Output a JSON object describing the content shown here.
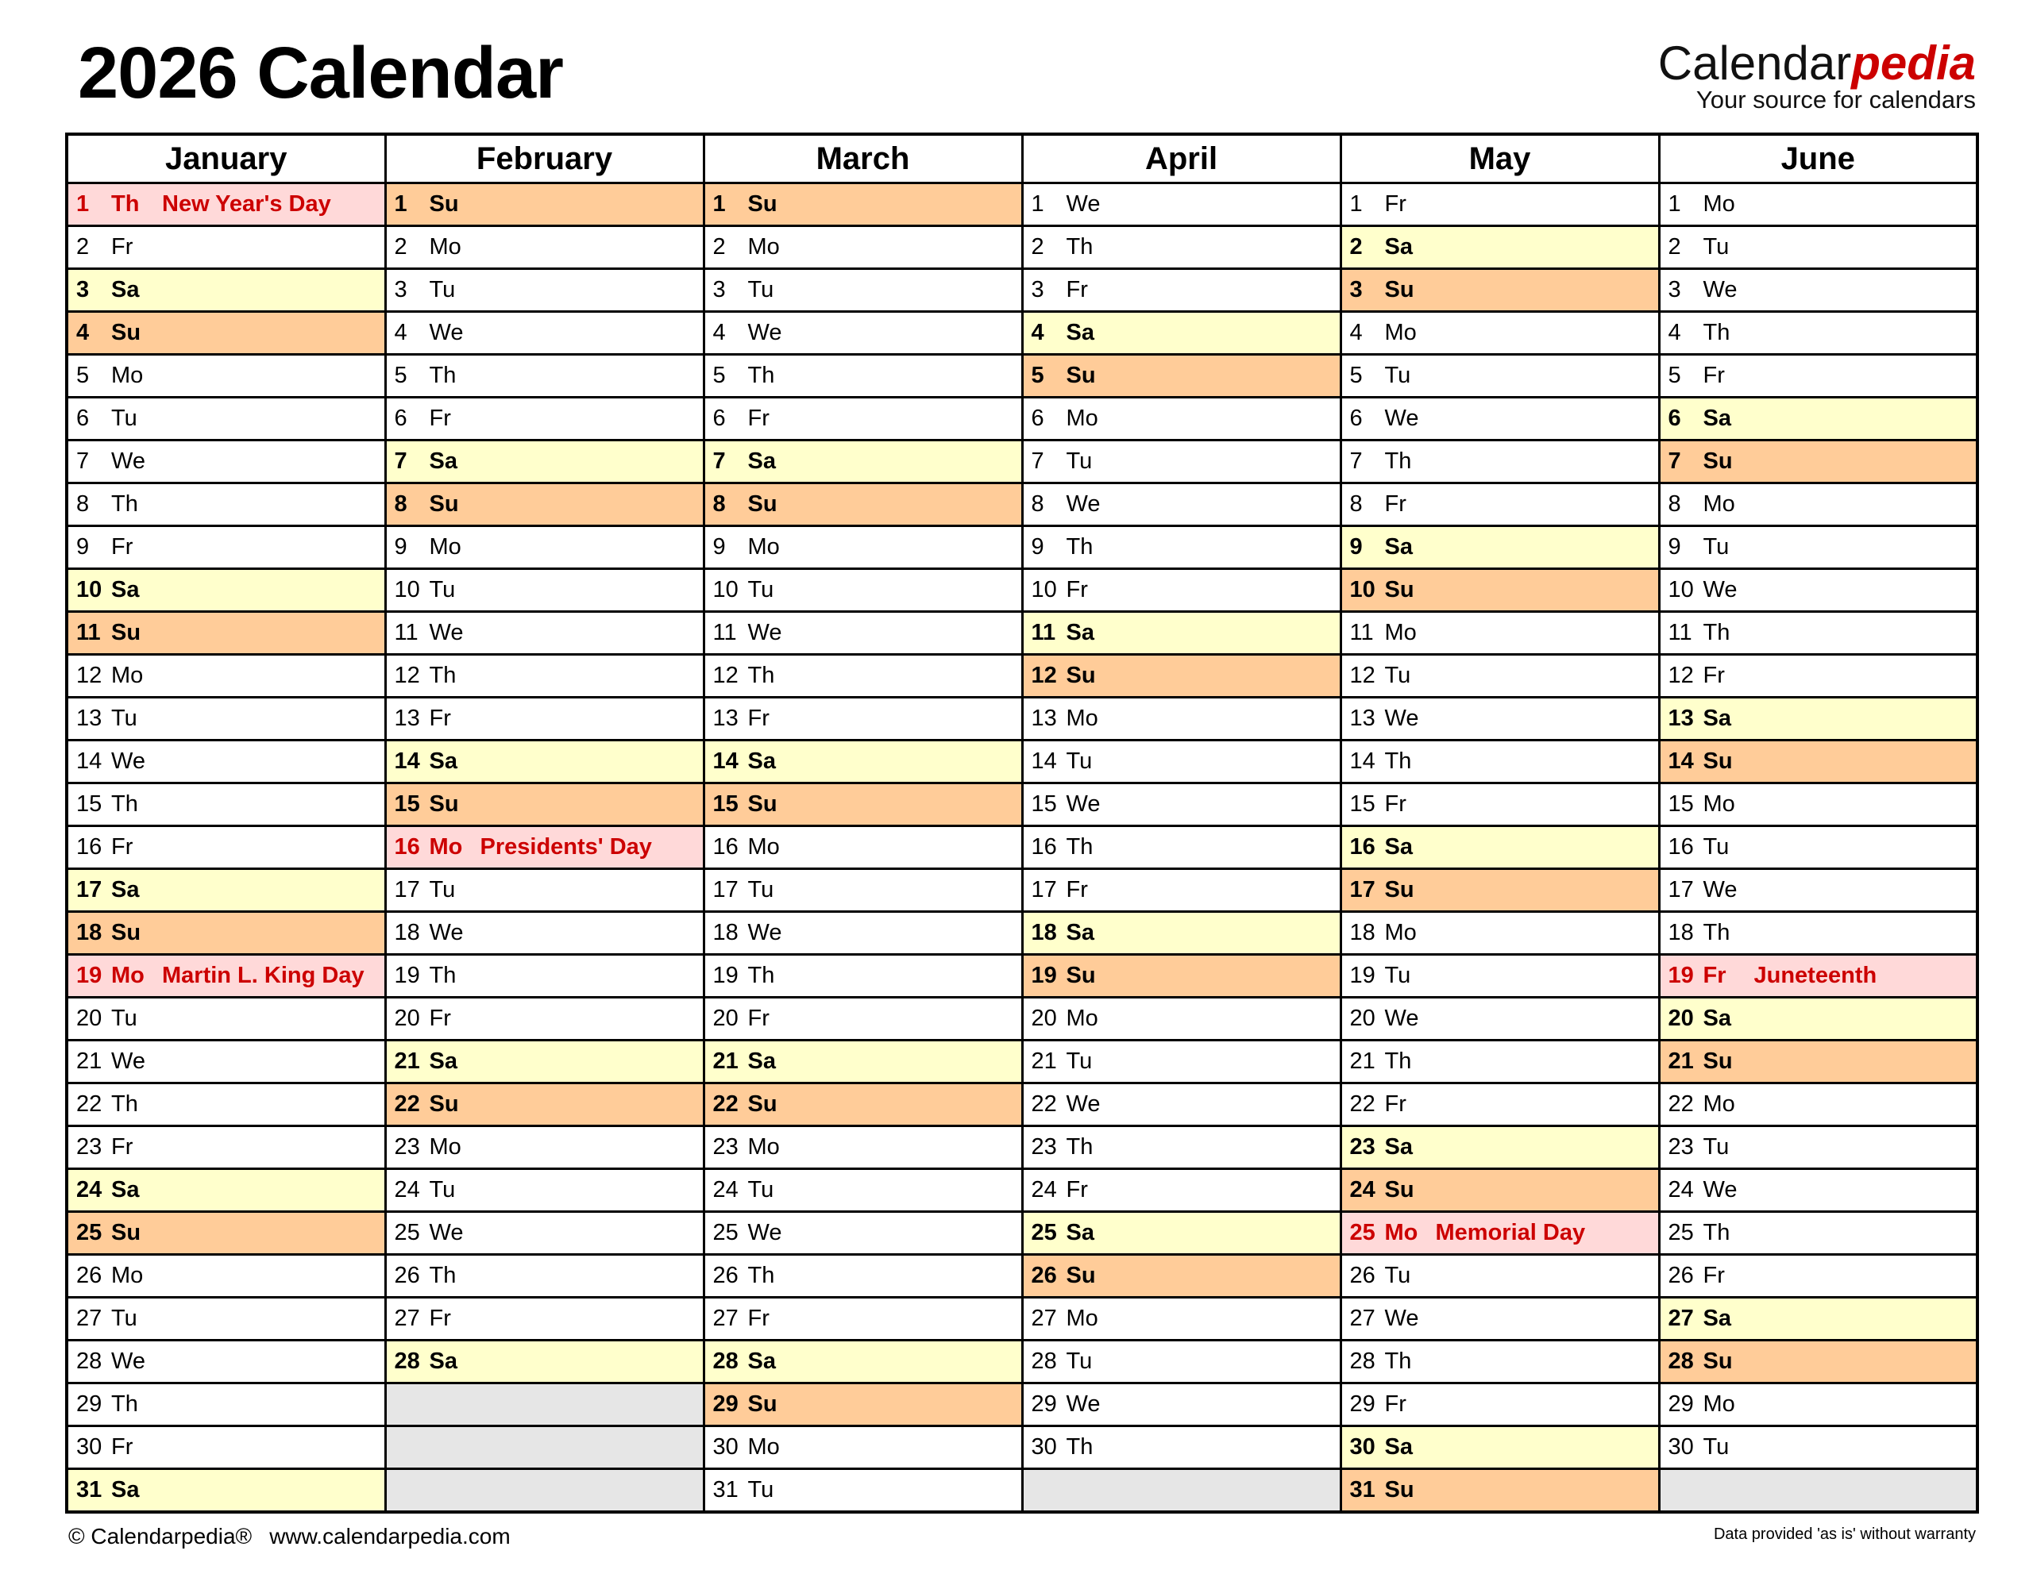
{
  "title": "2026 Calendar",
  "logo": {
    "main": "Calendar",
    "accent": "pedia",
    "tagline": "Your source for calendars"
  },
  "colors": {
    "saturday": "#ffffcc",
    "sunday": "#ffcc99",
    "holiday_bg": "#ffd9d9",
    "holiday_text": "#cc0000",
    "empty": "#e6e6e6"
  },
  "months": [
    {
      "name": "January",
      "days": [
        [
          "1",
          "Th",
          "New Year's Day"
        ],
        [
          "2",
          "Fr"
        ],
        [
          "3",
          "Sa"
        ],
        [
          "4",
          "Su"
        ],
        [
          "5",
          "Mo"
        ],
        [
          "6",
          "Tu"
        ],
        [
          "7",
          "We"
        ],
        [
          "8",
          "Th"
        ],
        [
          "9",
          "Fr"
        ],
        [
          "10",
          "Sa"
        ],
        [
          "11",
          "Su"
        ],
        [
          "12",
          "Mo"
        ],
        [
          "13",
          "Tu"
        ],
        [
          "14",
          "We"
        ],
        [
          "15",
          "Th"
        ],
        [
          "16",
          "Fr"
        ],
        [
          "17",
          "Sa"
        ],
        [
          "18",
          "Su"
        ],
        [
          "19",
          "Mo",
          "Martin L. King Day"
        ],
        [
          "20",
          "Tu"
        ],
        [
          "21",
          "We"
        ],
        [
          "22",
          "Th"
        ],
        [
          "23",
          "Fr"
        ],
        [
          "24",
          "Sa"
        ],
        [
          "25",
          "Su"
        ],
        [
          "26",
          "Mo"
        ],
        [
          "27",
          "Tu"
        ],
        [
          "28",
          "We"
        ],
        [
          "29",
          "Th"
        ],
        [
          "30",
          "Fr"
        ],
        [
          "31",
          "Sa"
        ]
      ]
    },
    {
      "name": "February",
      "days": [
        [
          "1",
          "Su"
        ],
        [
          "2",
          "Mo"
        ],
        [
          "3",
          "Tu"
        ],
        [
          "4",
          "We"
        ],
        [
          "5",
          "Th"
        ],
        [
          "6",
          "Fr"
        ],
        [
          "7",
          "Sa"
        ],
        [
          "8",
          "Su"
        ],
        [
          "9",
          "Mo"
        ],
        [
          "10",
          "Tu"
        ],
        [
          "11",
          "We"
        ],
        [
          "12",
          "Th"
        ],
        [
          "13",
          "Fr"
        ],
        [
          "14",
          "Sa"
        ],
        [
          "15",
          "Su"
        ],
        [
          "16",
          "Mo",
          "Presidents' Day"
        ],
        [
          "17",
          "Tu"
        ],
        [
          "18",
          "We"
        ],
        [
          "19",
          "Th"
        ],
        [
          "20",
          "Fr"
        ],
        [
          "21",
          "Sa"
        ],
        [
          "22",
          "Su"
        ],
        [
          "23",
          "Mo"
        ],
        [
          "24",
          "Tu"
        ],
        [
          "25",
          "We"
        ],
        [
          "26",
          "Th"
        ],
        [
          "27",
          "Fr"
        ],
        [
          "28",
          "Sa"
        ]
      ]
    },
    {
      "name": "March",
      "days": [
        [
          "1",
          "Su"
        ],
        [
          "2",
          "Mo"
        ],
        [
          "3",
          "Tu"
        ],
        [
          "4",
          "We"
        ],
        [
          "5",
          "Th"
        ],
        [
          "6",
          "Fr"
        ],
        [
          "7",
          "Sa"
        ],
        [
          "8",
          "Su"
        ],
        [
          "9",
          "Mo"
        ],
        [
          "10",
          "Tu"
        ],
        [
          "11",
          "We"
        ],
        [
          "12",
          "Th"
        ],
        [
          "13",
          "Fr"
        ],
        [
          "14",
          "Sa"
        ],
        [
          "15",
          "Su"
        ],
        [
          "16",
          "Mo"
        ],
        [
          "17",
          "Tu"
        ],
        [
          "18",
          "We"
        ],
        [
          "19",
          "Th"
        ],
        [
          "20",
          "Fr"
        ],
        [
          "21",
          "Sa"
        ],
        [
          "22",
          "Su"
        ],
        [
          "23",
          "Mo"
        ],
        [
          "24",
          "Tu"
        ],
        [
          "25",
          "We"
        ],
        [
          "26",
          "Th"
        ],
        [
          "27",
          "Fr"
        ],
        [
          "28",
          "Sa"
        ],
        [
          "29",
          "Su"
        ],
        [
          "30",
          "Mo"
        ],
        [
          "31",
          "Tu"
        ]
      ]
    },
    {
      "name": "April",
      "days": [
        [
          "1",
          "We"
        ],
        [
          "2",
          "Th"
        ],
        [
          "3",
          "Fr"
        ],
        [
          "4",
          "Sa"
        ],
        [
          "5",
          "Su"
        ],
        [
          "6",
          "Mo"
        ],
        [
          "7",
          "Tu"
        ],
        [
          "8",
          "We"
        ],
        [
          "9",
          "Th"
        ],
        [
          "10",
          "Fr"
        ],
        [
          "11",
          "Sa"
        ],
        [
          "12",
          "Su"
        ],
        [
          "13",
          "Mo"
        ],
        [
          "14",
          "Tu"
        ],
        [
          "15",
          "We"
        ],
        [
          "16",
          "Th"
        ],
        [
          "17",
          "Fr"
        ],
        [
          "18",
          "Sa"
        ],
        [
          "19",
          "Su"
        ],
        [
          "20",
          "Mo"
        ],
        [
          "21",
          "Tu"
        ],
        [
          "22",
          "We"
        ],
        [
          "23",
          "Th"
        ],
        [
          "24",
          "Fr"
        ],
        [
          "25",
          "Sa"
        ],
        [
          "26",
          "Su"
        ],
        [
          "27",
          "Mo"
        ],
        [
          "28",
          "Tu"
        ],
        [
          "29",
          "We"
        ],
        [
          "30",
          "Th"
        ]
      ]
    },
    {
      "name": "May",
      "days": [
        [
          "1",
          "Fr"
        ],
        [
          "2",
          "Sa"
        ],
        [
          "3",
          "Su"
        ],
        [
          "4",
          "Mo"
        ],
        [
          "5",
          "Tu"
        ],
        [
          "6",
          "We"
        ],
        [
          "7",
          "Th"
        ],
        [
          "8",
          "Fr"
        ],
        [
          "9",
          "Sa"
        ],
        [
          "10",
          "Su"
        ],
        [
          "11",
          "Mo"
        ],
        [
          "12",
          "Tu"
        ],
        [
          "13",
          "We"
        ],
        [
          "14",
          "Th"
        ],
        [
          "15",
          "Fr"
        ],
        [
          "16",
          "Sa"
        ],
        [
          "17",
          "Su"
        ],
        [
          "18",
          "Mo"
        ],
        [
          "19",
          "Tu"
        ],
        [
          "20",
          "We"
        ],
        [
          "21",
          "Th"
        ],
        [
          "22",
          "Fr"
        ],
        [
          "23",
          "Sa"
        ],
        [
          "24",
          "Su"
        ],
        [
          "25",
          "Mo",
          "Memorial Day"
        ],
        [
          "26",
          "Tu"
        ],
        [
          "27",
          "We"
        ],
        [
          "28",
          "Th"
        ],
        [
          "29",
          "Fr"
        ],
        [
          "30",
          "Sa"
        ],
        [
          "31",
          "Su"
        ]
      ]
    },
    {
      "name": "June",
      "days": [
        [
          "1",
          "Mo"
        ],
        [
          "2",
          "Tu"
        ],
        [
          "3",
          "We"
        ],
        [
          "4",
          "Th"
        ],
        [
          "5",
          "Fr"
        ],
        [
          "6",
          "Sa"
        ],
        [
          "7",
          "Su"
        ],
        [
          "8",
          "Mo"
        ],
        [
          "9",
          "Tu"
        ],
        [
          "10",
          "We"
        ],
        [
          "11",
          "Th"
        ],
        [
          "12",
          "Fr"
        ],
        [
          "13",
          "Sa"
        ],
        [
          "14",
          "Su"
        ],
        [
          "15",
          "Mo"
        ],
        [
          "16",
          "Tu"
        ],
        [
          "17",
          "We"
        ],
        [
          "18",
          "Th"
        ],
        [
          "19",
          "Fr",
          "Juneteenth"
        ],
        [
          "20",
          "Sa"
        ],
        [
          "21",
          "Su"
        ],
        [
          "22",
          "Mo"
        ],
        [
          "23",
          "Tu"
        ],
        [
          "24",
          "We"
        ],
        [
          "25",
          "Th"
        ],
        [
          "26",
          "Fr"
        ],
        [
          "27",
          "Sa"
        ],
        [
          "28",
          "Su"
        ],
        [
          "29",
          "Mo"
        ],
        [
          "30",
          "Tu"
        ]
      ]
    }
  ],
  "footer": {
    "copyright": "© Calendarpedia®",
    "url": "www.calendarpedia.com",
    "disclaimer": "Data provided 'as is' without warranty"
  }
}
